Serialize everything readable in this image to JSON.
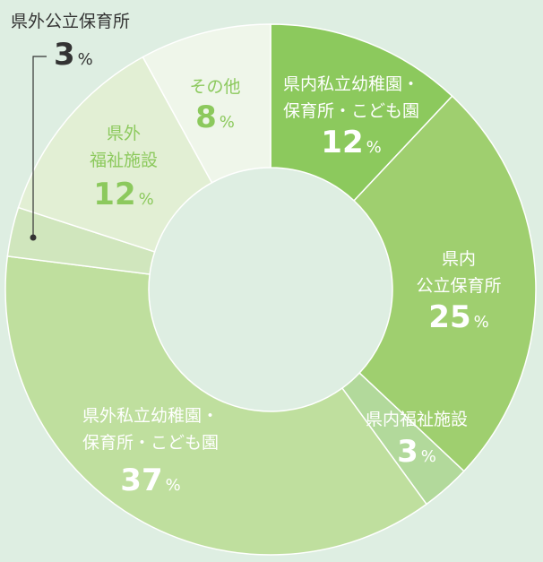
{
  "chart_data": {
    "type": "pie",
    "donut": true,
    "categories": [
      "県内私立幼稚園・保育所・こども園",
      "県内公立保育所",
      "県内福祉施設",
      "県外私立幼稚園・保育所・こども園",
      "県外公立保育所",
      "県外福祉施設",
      "その他"
    ],
    "values": [
      12,
      25,
      3,
      37,
      3,
      12,
      8
    ],
    "unit": "%",
    "colors": [
      "#8cc95d",
      "#9fcf6f",
      "#b2d99b",
      "#bfdf9e",
      "#d0e6bd",
      "#e2efd4",
      "#eff6ea"
    ],
    "labels": [
      {
        "lines": [
          "県内私立幼稚園・",
          "保育所・こども園"
        ],
        "value": "12",
        "unit": "%",
        "text_color": "#ffffff"
      },
      {
        "lines": [
          "県内",
          "公立保育所"
        ],
        "value": "25",
        "unit": "%",
        "text_color": "#ffffff"
      },
      {
        "lines": [
          "県内福祉施設"
        ],
        "value": "3",
        "unit": "%",
        "text_color": "#ffffff"
      },
      {
        "lines": [
          "県外私立幼稚園・",
          "保育所・こども園"
        ],
        "value": "37",
        "unit": "%",
        "text_color": "#ffffff"
      },
      {
        "lines": [
          "県外公立保育所"
        ],
        "value": "3",
        "unit": "%",
        "text_color": "#333333"
      },
      {
        "lines": [
          "県外",
          "福祉施設"
        ],
        "value": "12",
        "unit": "%",
        "text_color": "#8cc95d"
      },
      {
        "lines": [
          "その他"
        ],
        "value": "8",
        "unit": "%",
        "text_color": "#8cc95d"
      }
    ]
  }
}
